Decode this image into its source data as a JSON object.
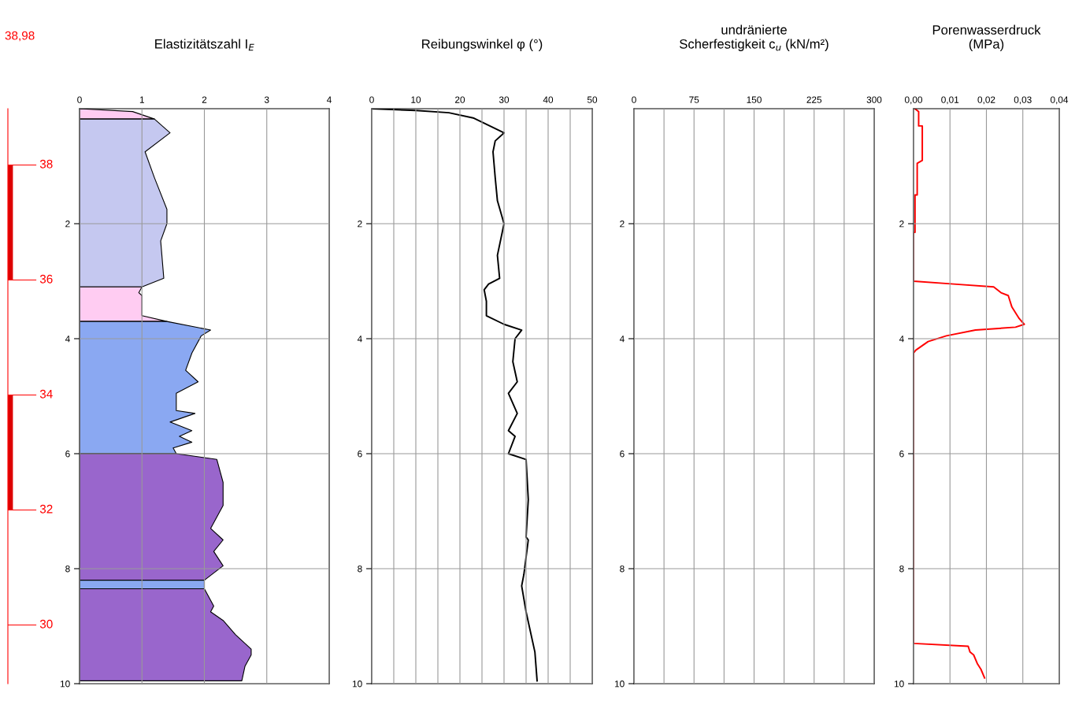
{
  "chart_data": [
    {
      "type": "area",
      "orientation": "horizontal",
      "title": "Elastizitätszahl I$_{E}$",
      "xlim": [
        0,
        4
      ],
      "xticks": [
        0,
        1,
        2,
        3,
        4
      ],
      "ylim": [
        10,
        0
      ],
      "yticks": [
        2,
        4,
        6,
        8,
        10
      ],
      "grid": true,
      "y2lim": [
        28.98,
        38.98
      ],
      "y2ticks": [
        38,
        36,
        34,
        32,
        30
      ],
      "annotations": [
        "38,98"
      ],
      "series": [
        {
          "color": "#ffccf2",
          "values": [
            0,
            0.85,
            1.2
          ],
          "x": [
            0,
            0.05,
            0.18
          ]
        },
        {
          "color": "#c5c8f0",
          "values": [
            1.2,
            1.45,
            1.05,
            1.2,
            1.4,
            1.4,
            1.3,
            1.35,
            1.0
          ],
          "x": [
            0.18,
            0.42,
            0.75,
            1.2,
            1.75,
            2.0,
            2.3,
            2.95,
            3.1
          ]
        },
        {
          "color": "#ffccf2",
          "values": [
            1.0,
            0.95,
            1.0,
            1.0,
            1.4
          ],
          "x": [
            3.1,
            3.2,
            3.25,
            3.6,
            3.7
          ]
        },
        {
          "color": "#8aa8f2",
          "values": [
            1.4,
            2.1,
            1.95,
            1.8,
            1.7,
            1.9,
            1.55,
            1.55,
            1.85,
            1.45,
            1.8,
            1.6,
            1.8,
            1.5,
            1.55
          ],
          "x": [
            3.7,
            3.85,
            3.95,
            4.25,
            4.55,
            4.75,
            4.95,
            5.25,
            5.3,
            5.45,
            5.6,
            5.7,
            5.8,
            5.9,
            6.0
          ]
        },
        {
          "color": "#9966cc",
          "values": [
            1.55,
            2.2,
            2.3,
            2.3,
            2.1,
            2.3,
            2.15,
            2.3,
            2.0
          ],
          "x": [
            6.0,
            6.1,
            6.5,
            6.9,
            7.3,
            7.5,
            7.7,
            7.95,
            8.2
          ]
        },
        {
          "color": "#8aa8f2",
          "values": [
            2.0,
            2.0
          ],
          "x": [
            8.2,
            8.35
          ]
        },
        {
          "color": "#9966cc",
          "values": [
            2.0,
            2.15,
            2.1,
            2.3,
            2.5,
            2.75,
            2.75,
            2.65,
            2.6
          ],
          "x": [
            8.35,
            8.65,
            8.75,
            8.9,
            9.15,
            9.4,
            9.5,
            9.7,
            9.95
          ]
        }
      ]
    },
    {
      "type": "line",
      "title": "Reibungswinkel φ (°)",
      "xlim": [
        0,
        50
      ],
      "xticks": [
        0,
        {
          "value": 5,
          "label": null
        },
        10,
        {
          "value": 15,
          "label": null
        },
        20,
        {
          "value": 25,
          "label": null
        },
        30,
        {
          "value": 35,
          "label": null
        },
        40,
        {
          "value": 45,
          "label": null
        },
        50
      ],
      "ylim": [
        10,
        0
      ],
      "yticks": [
        2,
        4,
        6,
        8,
        10
      ],
      "grid": true,
      "series": [
        {
          "color": "#000000",
          "x": [
            0,
            10,
            17.5,
            23,
            26.5,
            30,
            28,
            27.5,
            28,
            28.5,
            30,
            28.5,
            29,
            26.5,
            25.5,
            26,
            26,
            30,
            34,
            32.5,
            32,
            33,
            31,
            33,
            31,
            32.5,
            31,
            35,
            35.5,
            35,
            35.5,
            34.5,
            34,
            35,
            37,
            37.5
          ],
          "values": [
            0,
            0.03,
            0.07,
            0.16,
            0.29,
            0.42,
            0.56,
            0.75,
            1.2,
            1.6,
            2.0,
            2.55,
            2.95,
            3.05,
            3.15,
            3.35,
            3.6,
            3.75,
            3.85,
            4.0,
            4.4,
            4.75,
            4.95,
            5.3,
            5.6,
            5.7,
            6.0,
            6.1,
            6.8,
            7.45,
            7.5,
            8.1,
            8.3,
            8.75,
            9.45,
            9.95
          ]
        }
      ]
    },
    {
      "type": "line",
      "title": "undränierte\nScherfestigkeit c$_{u}$ (kN/m²)",
      "xlim": [
        0,
        300
      ],
      "xticks": [
        0,
        {
          "value": 37.5,
          "label": null
        },
        75,
        {
          "value": 112.5,
          "label": null
        },
        150,
        {
          "value": 187.5,
          "label": null
        },
        225,
        {
          "value": 262.5,
          "label": null
        },
        300
      ],
      "ylim": [
        10,
        0
      ],
      "yticks": [
        2,
        4,
        6,
        8,
        10
      ],
      "grid": true
    },
    {
      "type": "line",
      "title": "Porenwasserdruck\n(MPa)",
      "xlim": [
        0,
        0.04
      ],
      "xticks": [
        {
          "value": 0,
          "label": "0,00"
        },
        {
          "value": 0.01,
          "label": "0,01"
        },
        {
          "value": 0.02,
          "label": "0,02"
        },
        {
          "value": 0.03,
          "label": "0,03"
        },
        {
          "value": 0.04,
          "label": "0,04"
        }
      ],
      "ylim": [
        10,
        0
      ],
      "yticks": [
        2,
        4,
        6,
        8,
        10
      ],
      "grid": true,
      "series": [
        {
          "color": "#ff0000",
          "x": [
            0.0004,
            0.0014,
            0.0014,
            0.0024,
            0.0024,
            0.001,
            0.001,
            0.0004,
            0.0004,
            0,
            0,
            0.011,
            0.022,
            0.024,
            0.026,
            0.027,
            0.029,
            0.0304,
            0.028,
            0.017,
            0.009,
            0.004,
            0.0006,
            0,
            0,
            0.015,
            0.0155,
            0.0165,
            0.0175,
            0.0185,
            0.0195
          ],
          "values": [
            0,
            0.05,
            0.3,
            0.3,
            0.9,
            0.95,
            1.5,
            1.5,
            2.15,
            2.15,
            3.0,
            3.05,
            3.1,
            3.2,
            3.25,
            3.45,
            3.65,
            3.75,
            3.8,
            3.85,
            3.95,
            4.05,
            4.2,
            4.25,
            9.3,
            9.35,
            9.45,
            9.5,
            9.65,
            9.75,
            9.9
          ]
        }
      ]
    }
  ]
}
